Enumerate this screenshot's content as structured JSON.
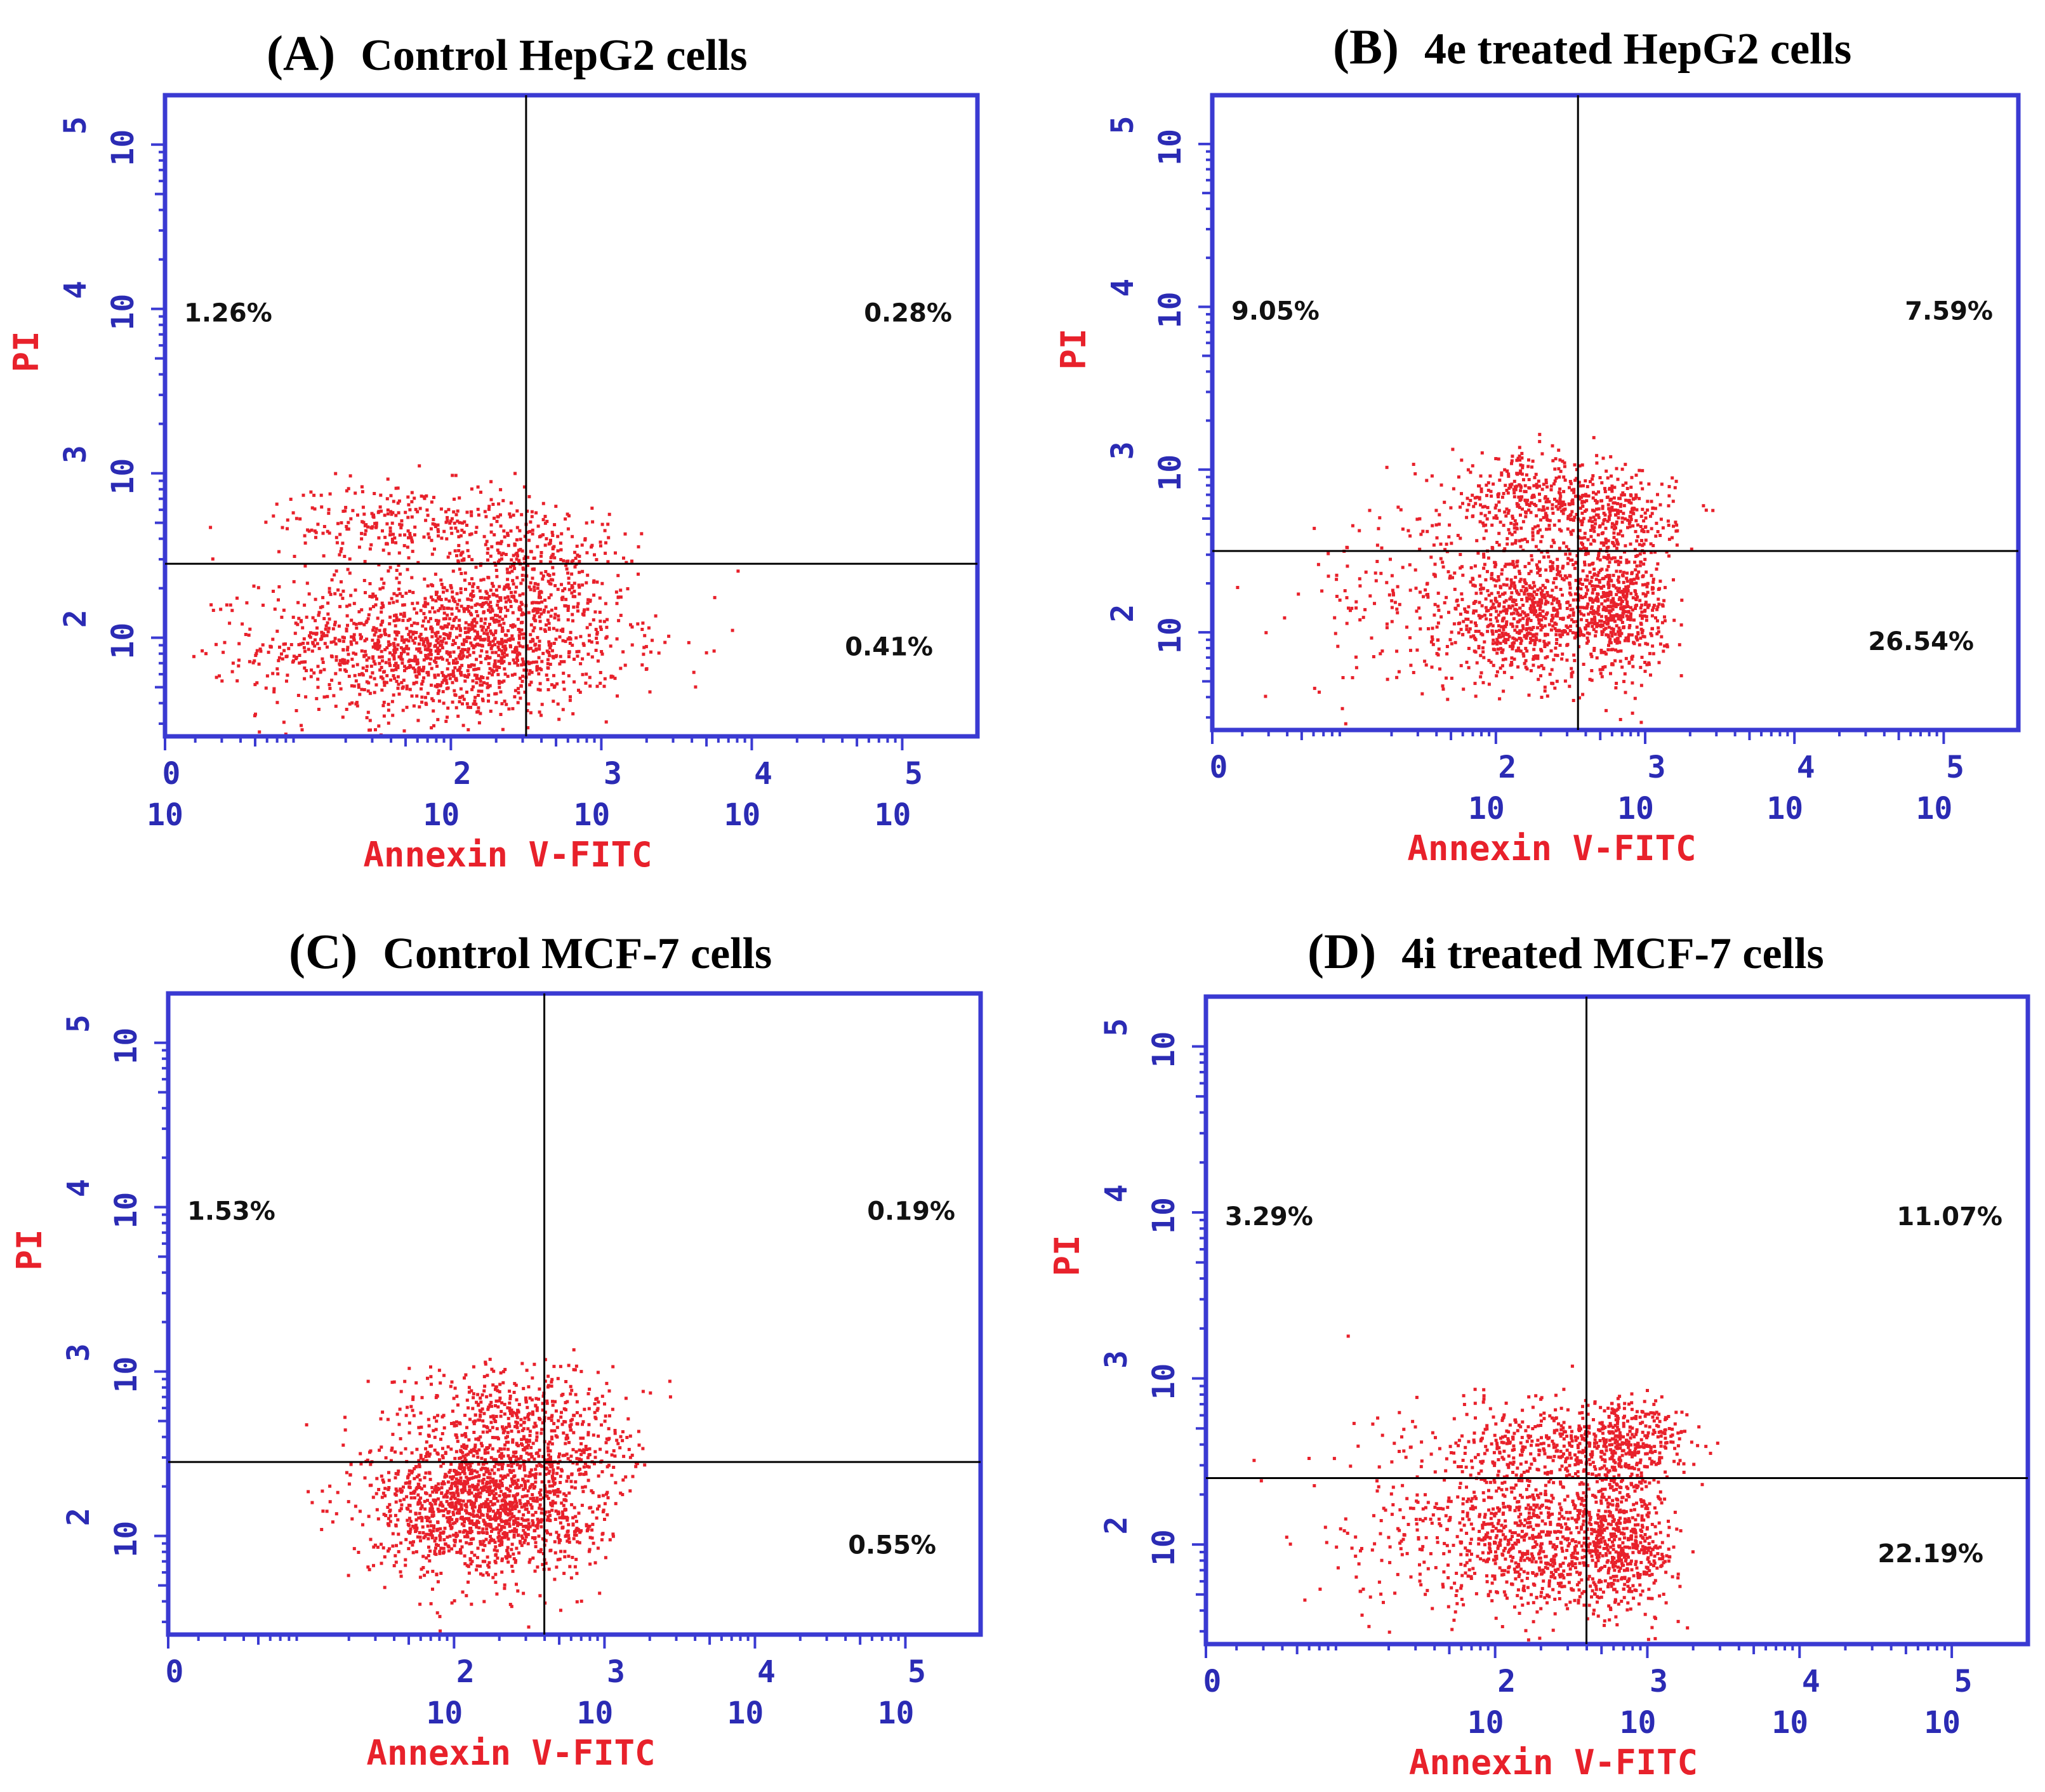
{
  "colors": {
    "axis": "#3a3ad2",
    "tick_text": "#2b2bb4",
    "axis_label": "#e8212b",
    "dots": "#e8212b",
    "gate": "#000000"
  },
  "chart_data": [
    {
      "type": "scatter",
      "panel": "(A)",
      "title": "Control HepG2 cells",
      "xlabel": "Annexin V-FITC",
      "ylabel": "PI",
      "x_scale": "log10",
      "y_scale": "log10",
      "xlim": [
        0.1,
        5.5
      ],
      "ylim": [
        1.4,
        5.3
      ],
      "x_ticks": [
        {
          "base": "10",
          "exp": "0"
        },
        {
          "base": "10",
          "exp": "2"
        },
        {
          "base": "10",
          "exp": "3"
        },
        {
          "base": "10",
          "exp": "4"
        },
        {
          "base": "10",
          "exp": "5"
        }
      ],
      "x_tick_values": [
        0.1,
        2,
        3,
        4,
        5
      ],
      "y_ticks": [
        {
          "base": "10",
          "exp": "2"
        },
        {
          "base": "10",
          "exp": "3"
        },
        {
          "base": "10",
          "exp": "4"
        },
        {
          "base": "10",
          "exp": "5"
        }
      ],
      "y_tick_values": [
        2,
        3,
        4,
        5
      ],
      "gate": {
        "x": 2.5,
        "y": 2.45
      },
      "quadrants": {
        "upper_left": "1.26%",
        "upper_right": "0.28%",
        "lower_right": "0.41%"
      },
      "clusters": [
        {
          "cx": 1.95,
          "cy": 1.95,
          "sx": 0.6,
          "sy": 0.22,
          "n": 1500
        },
        {
          "cx": 1.75,
          "cy": 2.7,
          "sx": 0.45,
          "sy": 0.12,
          "n": 300
        },
        {
          "cx": 2.55,
          "cy": 2.4,
          "sx": 0.25,
          "sy": 0.2,
          "n": 250
        },
        {
          "cx": 2.8,
          "cy": 2.2,
          "sx": 0.4,
          "sy": 0.35,
          "n": 60
        }
      ]
    },
    {
      "type": "scatter",
      "panel": "(B)",
      "title": "4e treated HepG2 cells",
      "xlabel": "Annexin V-FITC",
      "ylabel": "PI",
      "x_scale": "log10",
      "y_scale": "log10",
      "xlim": [
        0.1,
        5.5
      ],
      "ylim": [
        1.4,
        5.3
      ],
      "x_ticks": [
        {
          "base": "",
          "exp": "0"
        },
        {
          "base": "10",
          "exp": "2"
        },
        {
          "base": "10",
          "exp": "3"
        },
        {
          "base": "10",
          "exp": "4"
        },
        {
          "base": "10",
          "exp": "5"
        }
      ],
      "x_tick_values": [
        0.1,
        2,
        3,
        4,
        5
      ],
      "y_ticks": [
        {
          "base": "10",
          "exp": "2"
        },
        {
          "base": "10",
          "exp": "3"
        },
        {
          "base": "10",
          "exp": "4"
        },
        {
          "base": "10",
          "exp": "5"
        }
      ],
      "y_tick_values": [
        2,
        3,
        4,
        5
      ],
      "gate": {
        "x": 2.55,
        "y": 2.5
      },
      "quadrants": {
        "upper_left": "9.05%",
        "upper_right": "7.59%",
        "lower_right": "26.54%"
      },
      "clusters": [
        {
          "cx": 2.2,
          "cy": 2.1,
          "sx": 0.28,
          "sy": 0.2,
          "n": 650
        },
        {
          "cx": 2.2,
          "cy": 2.8,
          "sx": 0.25,
          "sy": 0.14,
          "n": 350
        },
        {
          "cx": 2.8,
          "cy": 2.15,
          "sx": 0.17,
          "sy": 0.2,
          "n": 550
        },
        {
          "cx": 2.8,
          "cy": 2.7,
          "sx": 0.2,
          "sy": 0.14,
          "n": 300
        },
        {
          "cx": 1.5,
          "cy": 2.2,
          "sx": 0.4,
          "sy": 0.3,
          "n": 200
        }
      ]
    },
    {
      "type": "scatter",
      "panel": "(C)",
      "title": "Control MCF-7 cells",
      "xlabel": "Annexin V-FITC",
      "ylabel": "PI",
      "x_scale": "log10",
      "y_scale": "log10",
      "xlim": [
        0.1,
        5.5
      ],
      "ylim": [
        1.4,
        5.3
      ],
      "x_ticks": [
        {
          "base": "",
          "exp": "0"
        },
        {
          "base": "10",
          "exp": "2"
        },
        {
          "base": "10",
          "exp": "3"
        },
        {
          "base": "10",
          "exp": "4"
        },
        {
          "base": "10",
          "exp": "5"
        }
      ],
      "x_tick_values": [
        0.1,
        2,
        3,
        4,
        5
      ],
      "y_ticks": [
        {
          "base": "10",
          "exp": "2"
        },
        {
          "base": "10",
          "exp": "3"
        },
        {
          "base": "10",
          "exp": "4"
        },
        {
          "base": "10",
          "exp": "5"
        }
      ],
      "y_tick_values": [
        2,
        3,
        4,
        5
      ],
      "gate": {
        "x": 2.6,
        "y": 2.45
      },
      "quadrants": {
        "upper_left": "1.53%",
        "upper_right": "0.19%",
        "lower_right": "0.55%"
      },
      "clusters": [
        {
          "cx": 2.15,
          "cy": 2.2,
          "sx": 0.35,
          "sy": 0.22,
          "n": 1400
        },
        {
          "cx": 2.3,
          "cy": 2.75,
          "sx": 0.35,
          "sy": 0.16,
          "n": 300
        },
        {
          "cx": 2.85,
          "cy": 2.6,
          "sx": 0.25,
          "sy": 0.16,
          "n": 150
        },
        {
          "cx": 2.75,
          "cy": 2.2,
          "sx": 0.2,
          "sy": 0.22,
          "n": 150
        }
      ]
    },
    {
      "type": "scatter",
      "panel": "(D)",
      "title": "4i treated MCF-7 cells",
      "xlabel": "Annexin V-FITC",
      "ylabel": "PI",
      "x_scale": "log10",
      "y_scale": "log10",
      "xlim": [
        0.1,
        5.5
      ],
      "ylim": [
        1.4,
        5.3
      ],
      "x_ticks": [
        {
          "base": "",
          "exp": "0"
        },
        {
          "base": "10",
          "exp": "2"
        },
        {
          "base": "10",
          "exp": "3"
        },
        {
          "base": "10",
          "exp": "4"
        },
        {
          "base": "10",
          "exp": "5"
        }
      ],
      "x_tick_values": [
        0.1,
        2,
        3,
        4,
        5
      ],
      "y_ticks": [
        {
          "base": "10",
          "exp": "2"
        },
        {
          "base": "10",
          "exp": "3"
        },
        {
          "base": "10",
          "exp": "4"
        },
        {
          "base": "10",
          "exp": "5"
        }
      ],
      "y_tick_values": [
        2,
        3,
        4,
        5
      ],
      "gate": {
        "x": 2.6,
        "y": 2.4
      },
      "quadrants": {
        "upper_left": "3.29%",
        "upper_right": "11.07%",
        "lower_right": "22.19%"
      },
      "clusters": [
        {
          "cx": 2.25,
          "cy": 2.0,
          "sx": 0.28,
          "sy": 0.2,
          "n": 650
        },
        {
          "cx": 2.25,
          "cy": 2.6,
          "sx": 0.28,
          "sy": 0.15,
          "n": 300
        },
        {
          "cx": 2.85,
          "cy": 2.0,
          "sx": 0.17,
          "sy": 0.2,
          "n": 500
        },
        {
          "cx": 2.85,
          "cy": 2.6,
          "sx": 0.2,
          "sy": 0.14,
          "n": 400
        },
        {
          "cx": 1.5,
          "cy": 2.1,
          "sx": 0.4,
          "sy": 0.3,
          "n": 200
        }
      ]
    }
  ]
}
